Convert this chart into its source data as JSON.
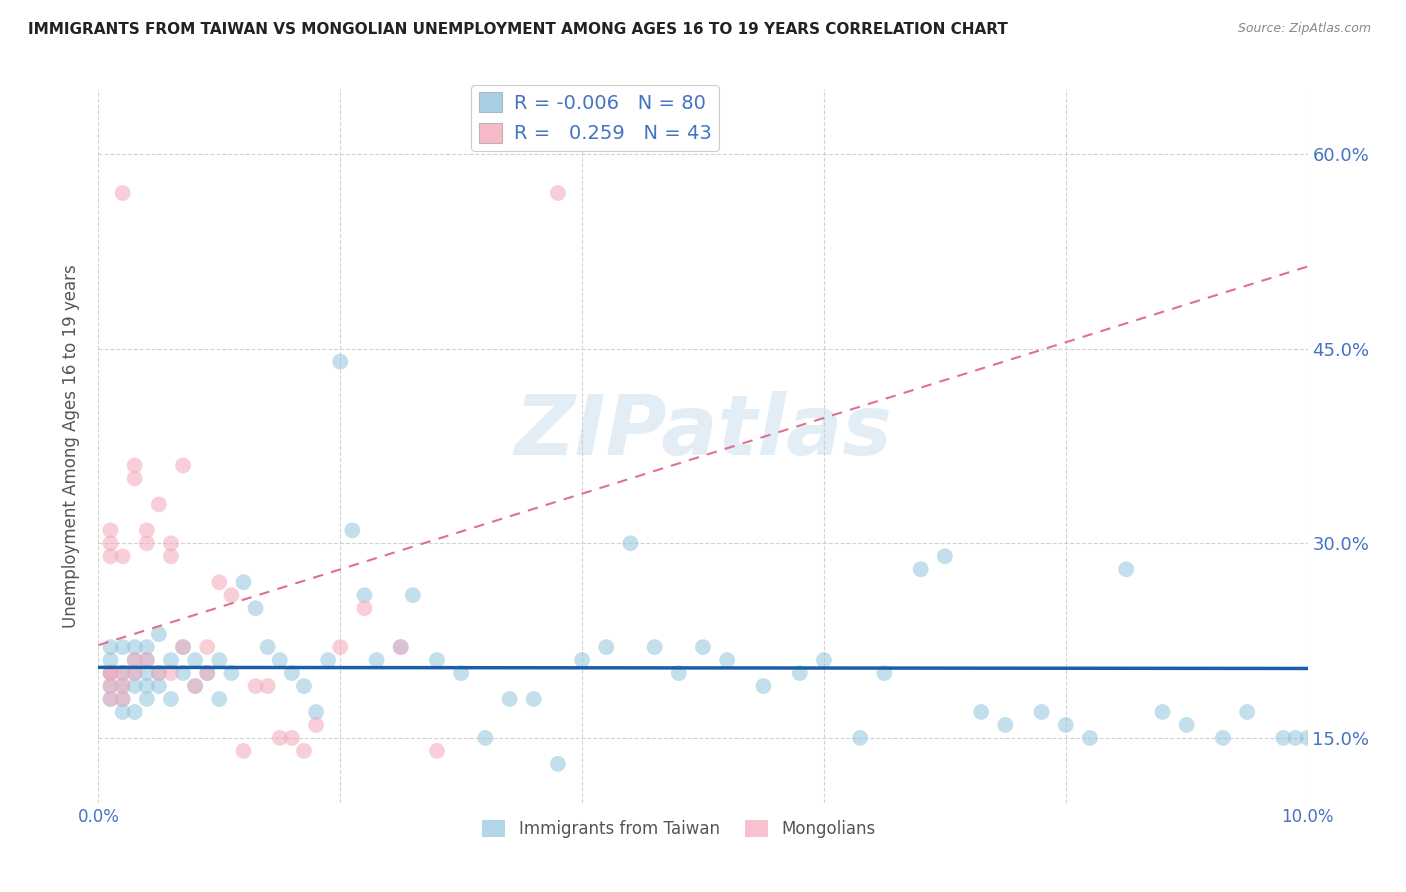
{
  "title": "IMMIGRANTS FROM TAIWAN VS MONGOLIAN UNEMPLOYMENT AMONG AGES 16 TO 19 YEARS CORRELATION CHART",
  "source": "Source: ZipAtlas.com",
  "ylabel": "Unemployment Among Ages 16 to 19 years",
  "xlim": [
    0.0,
    0.1
  ],
  "ylim": [
    0.1,
    0.65
  ],
  "right_yticks": [
    0.15,
    0.3,
    0.45,
    0.6
  ],
  "right_yticklabels": [
    "15.0%",
    "30.0%",
    "45.0%",
    "60.0%"
  ],
  "blue_color": "#92c5de",
  "pink_color": "#f4a9bb",
  "blue_line_color": "#1a5fa8",
  "pink_line_color": "#e07090",
  "legend_R_blue": "-0.006",
  "legend_N_blue": "80",
  "legend_R_pink": "0.259",
  "legend_N_pink": "43",
  "watermark": "ZIPatlas",
  "blue_x": [
    0.001,
    0.001,
    0.001,
    0.001,
    0.001,
    0.002,
    0.002,
    0.002,
    0.002,
    0.002,
    0.003,
    0.003,
    0.003,
    0.003,
    0.003,
    0.004,
    0.004,
    0.004,
    0.004,
    0.004,
    0.005,
    0.005,
    0.005,
    0.006,
    0.006,
    0.007,
    0.007,
    0.008,
    0.008,
    0.009,
    0.01,
    0.01,
    0.011,
    0.012,
    0.013,
    0.014,
    0.015,
    0.016,
    0.017,
    0.018,
    0.019,
    0.02,
    0.021,
    0.022,
    0.023,
    0.025,
    0.026,
    0.028,
    0.03,
    0.032,
    0.034,
    0.036,
    0.038,
    0.04,
    0.042,
    0.044,
    0.046,
    0.048,
    0.05,
    0.052,
    0.055,
    0.058,
    0.06,
    0.063,
    0.065,
    0.068,
    0.07,
    0.073,
    0.075,
    0.078,
    0.08,
    0.082,
    0.085,
    0.088,
    0.09,
    0.093,
    0.095,
    0.098,
    0.099,
    0.1
  ],
  "blue_y": [
    0.2,
    0.22,
    0.19,
    0.18,
    0.21,
    0.2,
    0.17,
    0.19,
    0.22,
    0.18,
    0.22,
    0.21,
    0.2,
    0.19,
    0.17,
    0.2,
    0.19,
    0.22,
    0.18,
    0.21,
    0.2,
    0.23,
    0.19,
    0.21,
    0.18,
    0.22,
    0.2,
    0.21,
    0.19,
    0.2,
    0.18,
    0.21,
    0.2,
    0.27,
    0.25,
    0.22,
    0.21,
    0.2,
    0.19,
    0.17,
    0.21,
    0.44,
    0.31,
    0.26,
    0.21,
    0.22,
    0.26,
    0.21,
    0.2,
    0.15,
    0.18,
    0.18,
    0.13,
    0.21,
    0.22,
    0.3,
    0.22,
    0.2,
    0.22,
    0.21,
    0.19,
    0.2,
    0.21,
    0.15,
    0.2,
    0.28,
    0.29,
    0.17,
    0.16,
    0.17,
    0.16,
    0.15,
    0.28,
    0.17,
    0.16,
    0.15,
    0.17,
    0.15,
    0.15,
    0.15
  ],
  "pink_x": [
    0.001,
    0.001,
    0.001,
    0.001,
    0.001,
    0.001,
    0.001,
    0.002,
    0.002,
    0.002,
    0.002,
    0.002,
    0.003,
    0.003,
    0.003,
    0.003,
    0.004,
    0.004,
    0.004,
    0.005,
    0.005,
    0.006,
    0.006,
    0.006,
    0.007,
    0.007,
    0.008,
    0.009,
    0.009,
    0.01,
    0.011,
    0.012,
    0.013,
    0.014,
    0.015,
    0.016,
    0.017,
    0.018,
    0.02,
    0.022,
    0.025,
    0.028,
    0.038
  ],
  "pink_y": [
    0.2,
    0.19,
    0.18,
    0.2,
    0.29,
    0.3,
    0.31,
    0.19,
    0.18,
    0.2,
    0.29,
    0.57,
    0.2,
    0.21,
    0.35,
    0.36,
    0.3,
    0.31,
    0.21,
    0.2,
    0.33,
    0.2,
    0.29,
    0.3,
    0.36,
    0.22,
    0.19,
    0.2,
    0.22,
    0.27,
    0.26,
    0.14,
    0.19,
    0.19,
    0.15,
    0.15,
    0.14,
    0.16,
    0.22,
    0.25,
    0.22,
    0.14,
    0.57
  ]
}
